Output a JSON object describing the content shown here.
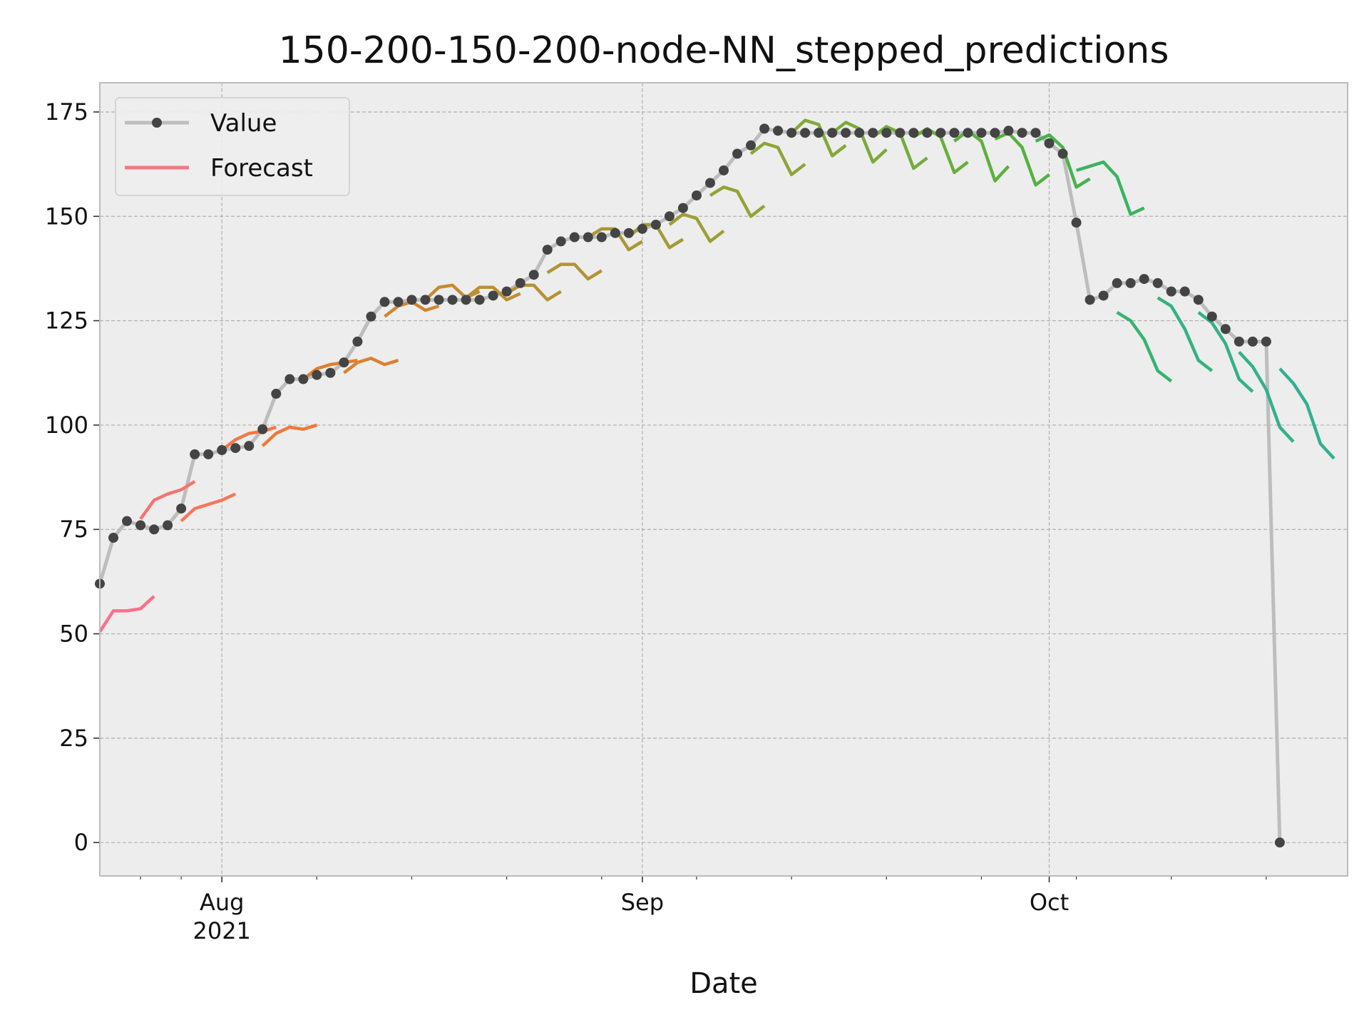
{
  "chart_data": {
    "type": "line",
    "title": "150-200-150-200-node-NN_stepped_predictions",
    "xlabel": "Date",
    "ylabel": "",
    "xlim": [
      "2021-07-23",
      "2021-10-23"
    ],
    "ylim": [
      -8,
      182
    ],
    "y_ticks": [
      0,
      25,
      50,
      75,
      100,
      125,
      150,
      175
    ],
    "x_major_ticks": [
      {
        "date": "2021-08-01",
        "label": "Aug",
        "sublabel": "2021"
      },
      {
        "date": "2021-09-01",
        "label": "Sep",
        "sublabel": ""
      },
      {
        "date": "2021-10-01",
        "label": "Oct",
        "sublabel": ""
      }
    ],
    "x_minor_ticks": [
      "2021-07-26",
      "2021-07-29",
      "2021-08-08",
      "2021-08-15",
      "2021-08-22",
      "2021-08-29",
      "2021-09-05",
      "2021-09-12",
      "2021-09-19",
      "2021-09-26",
      "2021-10-03",
      "2021-10-10",
      "2021-10-17"
    ],
    "grid": true,
    "legend": {
      "position": "top-left",
      "entries": [
        {
          "label": "Value",
          "color": "#444444"
        },
        {
          "label": "Forecast",
          "color": "#f07a85"
        }
      ]
    },
    "value_series": {
      "name": "Value",
      "start_date": "2021-07-23",
      "values": [
        62,
        73,
        77,
        76,
        75,
        76,
        80,
        93,
        93,
        94,
        94.5,
        95,
        99,
        107.5,
        111,
        111,
        112,
        112.5,
        115,
        120,
        126,
        129.5,
        129.5,
        130,
        130,
        130,
        130,
        130,
        130,
        131,
        132,
        134,
        136,
        142,
        144,
        145,
        145,
        145,
        146,
        146,
        147,
        148,
        150,
        152,
        155,
        158,
        161,
        165,
        167,
        171,
        170.5,
        170,
        170,
        170,
        170,
        170,
        170,
        170,
        170,
        170,
        170,
        170,
        170,
        170,
        170,
        170,
        170,
        170.5,
        170,
        170,
        167.5,
        165,
        148.5,
        130,
        131,
        134,
        134,
        135,
        134,
        132,
        132,
        130,
        126,
        123,
        120,
        120,
        120,
        0
      ]
    },
    "forecasts": [
      {
        "start_date": "2021-07-23",
        "color": "#f77189",
        "values": [
          50.5,
          55.5,
          55.5,
          56,
          59
        ]
      },
      {
        "start_date": "2021-07-26",
        "color": "#f7736f",
        "values": [
          77.5,
          82,
          83.5,
          84.5,
          86.5
        ]
      },
      {
        "start_date": "2021-07-29",
        "color": "#f7765a",
        "values": [
          77,
          80,
          81,
          82,
          83.5
        ]
      },
      {
        "start_date": "2021-08-01",
        "color": "#f37845",
        "values": [
          94,
          96.5,
          98,
          98.5,
          99.5
        ]
      },
      {
        "start_date": "2021-08-04",
        "color": "#ec7a39",
        "values": [
          95,
          98,
          99.5,
          99,
          100
        ]
      },
      {
        "start_date": "2021-08-07",
        "color": "#e27d2f",
        "values": [
          111,
          113.5,
          114.5,
          115,
          115.5
        ]
      },
      {
        "start_date": "2021-08-10",
        "color": "#d9822e",
        "values": [
          112.5,
          115,
          116,
          114.5,
          115.5
        ]
      },
      {
        "start_date": "2021-08-13",
        "color": "#d0862f",
        "values": [
          126,
          128.5,
          129.5,
          127.5,
          128.5
        ]
      },
      {
        "start_date": "2021-08-16",
        "color": "#c78a30",
        "values": [
          130,
          133,
          133.5,
          130.5,
          132
        ]
      },
      {
        "start_date": "2021-08-19",
        "color": "#be8e31",
        "values": [
          130.5,
          133,
          133,
          130,
          131.5
        ]
      },
      {
        "start_date": "2021-08-22",
        "color": "#b89133",
        "values": [
          131.5,
          133.5,
          133.5,
          130,
          132
        ]
      },
      {
        "start_date": "2021-08-25",
        "color": "#b19434",
        "values": [
          136.5,
          138.5,
          138.5,
          135,
          137
        ]
      },
      {
        "start_date": "2021-08-28",
        "color": "#aa9735",
        "values": [
          145,
          147,
          147,
          142,
          144
        ]
      },
      {
        "start_date": "2021-08-31",
        "color": "#a39b35",
        "values": [
          145,
          148,
          148,
          142.5,
          144.5
        ]
      },
      {
        "start_date": "2021-09-03",
        "color": "#9c9f35",
        "values": [
          148,
          150.5,
          149.5,
          144,
          146.5
        ]
      },
      {
        "start_date": "2021-09-06",
        "color": "#95a236",
        "values": [
          155,
          157,
          156,
          150,
          152.5
        ]
      },
      {
        "start_date": "2021-09-09",
        "color": "#8da537",
        "values": [
          165,
          167.5,
          166.5,
          160,
          162.5
        ]
      },
      {
        "start_date": "2021-09-12",
        "color": "#84a838",
        "values": [
          170,
          173,
          172,
          164.5,
          167
        ]
      },
      {
        "start_date": "2021-09-15",
        "color": "#7baa39",
        "values": [
          170,
          172.5,
          171,
          163,
          166
        ]
      },
      {
        "start_date": "2021-09-18",
        "color": "#72ac3a",
        "values": [
          169,
          171.5,
          170,
          161.5,
          164
        ]
      },
      {
        "start_date": "2021-09-21",
        "color": "#69ae3b",
        "values": [
          169,
          171,
          169,
          160.5,
          163
        ]
      },
      {
        "start_date": "2021-09-24",
        "color": "#5fb03c",
        "values": [
          168,
          170.5,
          168,
          158.5,
          162
        ]
      },
      {
        "start_date": "2021-09-27",
        "color": "#54b23e",
        "values": [
          168.5,
          170,
          166.5,
          157.5,
          160
        ]
      },
      {
        "start_date": "2021-09-30",
        "color": "#46b34b",
        "values": [
          168,
          169.5,
          166.5,
          157,
          159
        ]
      },
      {
        "start_date": "2021-10-03",
        "color": "#3bb35e",
        "values": [
          161,
          162,
          163,
          159.5,
          150.5,
          152
        ]
      },
      {
        "start_date": "2021-10-06",
        "color": "#36b371",
        "values": [
          127,
          125,
          120.5,
          113,
          110.5
        ]
      },
      {
        "start_date": "2021-10-09",
        "color": "#34b27f",
        "values": [
          130.5,
          128.5,
          123,
          115.5,
          113
        ]
      },
      {
        "start_date": "2021-10-12",
        "color": "#33b187",
        "values": [
          127,
          124.5,
          119.5,
          111,
          108
        ]
      },
      {
        "start_date": "2021-10-15",
        "color": "#33b08c",
        "values": [
          117.5,
          114,
          108.5,
          99.5,
          96
        ]
      },
      {
        "start_date": "2021-10-18",
        "color": "#33b090",
        "values": [
          113.5,
          110,
          105,
          95.5,
          92
        ]
      }
    ]
  }
}
